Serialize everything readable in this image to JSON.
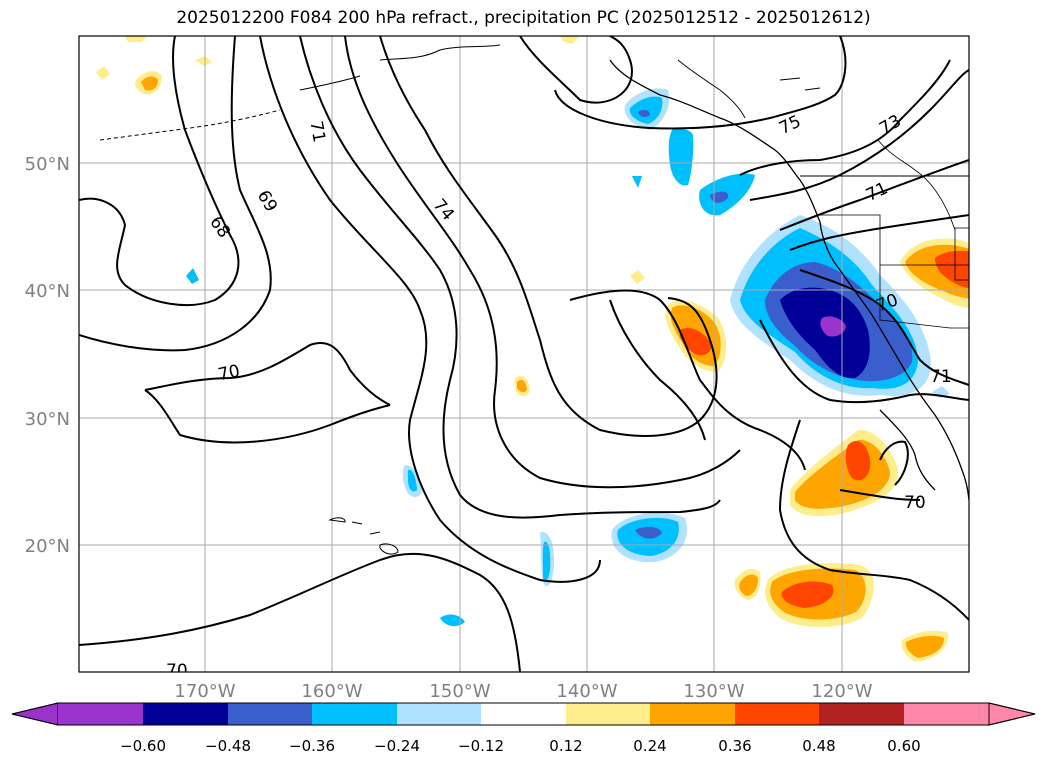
{
  "title": "2025012200 F084 200 hPa refract., precipitation PC (2025012512 - 2025012612)",
  "lat_labels": [
    "50°N",
    "40°N",
    "30°N",
    "20°N"
  ],
  "lon_labels": [
    "170°W",
    "160°W",
    "150°W",
    "140°W",
    "130°W",
    "120°W"
  ],
  "contour_labels": [
    "68",
    "69",
    "70",
    "71",
    "74",
    "75",
    "73",
    "71",
    "70",
    "71",
    "70",
    "70"
  ],
  "colorbar": {
    "ticks": [
      "−0.60",
      "−0.48",
      "−0.36",
      "−0.24",
      "−0.12",
      "0.12",
      "0.24",
      "0.36",
      "0.48",
      "0.60"
    ],
    "colors": [
      "#9933cc",
      "#000099",
      "#3a5fcd",
      "#00bfff",
      "#b0e2ff",
      "#ffffff",
      "#ffec8b",
      "#ffa500",
      "#ff4500",
      "#b22222",
      "#ff88aa"
    ]
  },
  "colors": {
    "grid": "#aaaaaa",
    "axis_label": "#808080",
    "contour": "#000000"
  }
}
